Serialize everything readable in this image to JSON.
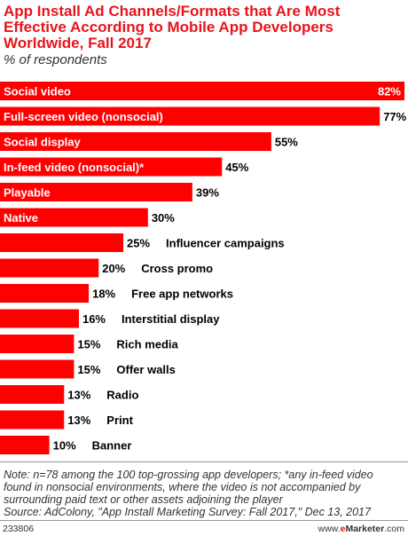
{
  "header": {
    "title_lines": [
      "App Install Ad Channels/Formats that Are Most",
      "Effective According to Mobile App Developers",
      "Worldwide, Fall 2017"
    ],
    "subtitle": "% of respondents"
  },
  "chart_data": {
    "type": "bar",
    "orientation": "horizontal",
    "categories": [
      "Social video",
      "Full-screen video (nonsocial)",
      "Social display",
      "In-feed video (nonsocial)*",
      "Playable",
      "Native",
      "Influencer campaigns",
      "Cross promo",
      "Free app networks",
      "Interstitial display",
      "Rich media",
      "Offer walls",
      "Radio",
      "Print",
      "Banner"
    ],
    "values": [
      82,
      77,
      55,
      45,
      39,
      30,
      25,
      20,
      18,
      16,
      15,
      15,
      13,
      13,
      10
    ],
    "value_labels": [
      "82%",
      "77%",
      "55%",
      "45%",
      "39%",
      "30%",
      "25%",
      "20%",
      "18%",
      "16%",
      "15%",
      "15%",
      "13%",
      "13%",
      "10%"
    ],
    "bar_color": "#ff0000",
    "label_inside_color": "#ffffff",
    "label_outside_color": "#000000",
    "xlim": [
      0,
      82
    ],
    "grid": false,
    "legend": "none"
  },
  "note": {
    "lines": [
      "Note: n=78 among the 100 top-grossing app developers; *any in-feed video",
      "found in nonsocial environments, where the video is not accompanied by",
      "surrounding paid text or other assets adjoining the player",
      "Source: AdColony, \"App Install Marketing Survey: Fall 2017,\" Dec 13, 2017"
    ]
  },
  "footer": {
    "id": "233806",
    "site_prefix": "www.",
    "site_e": "e",
    "site_m": "Marketer",
    "site_suffix": ".com"
  }
}
